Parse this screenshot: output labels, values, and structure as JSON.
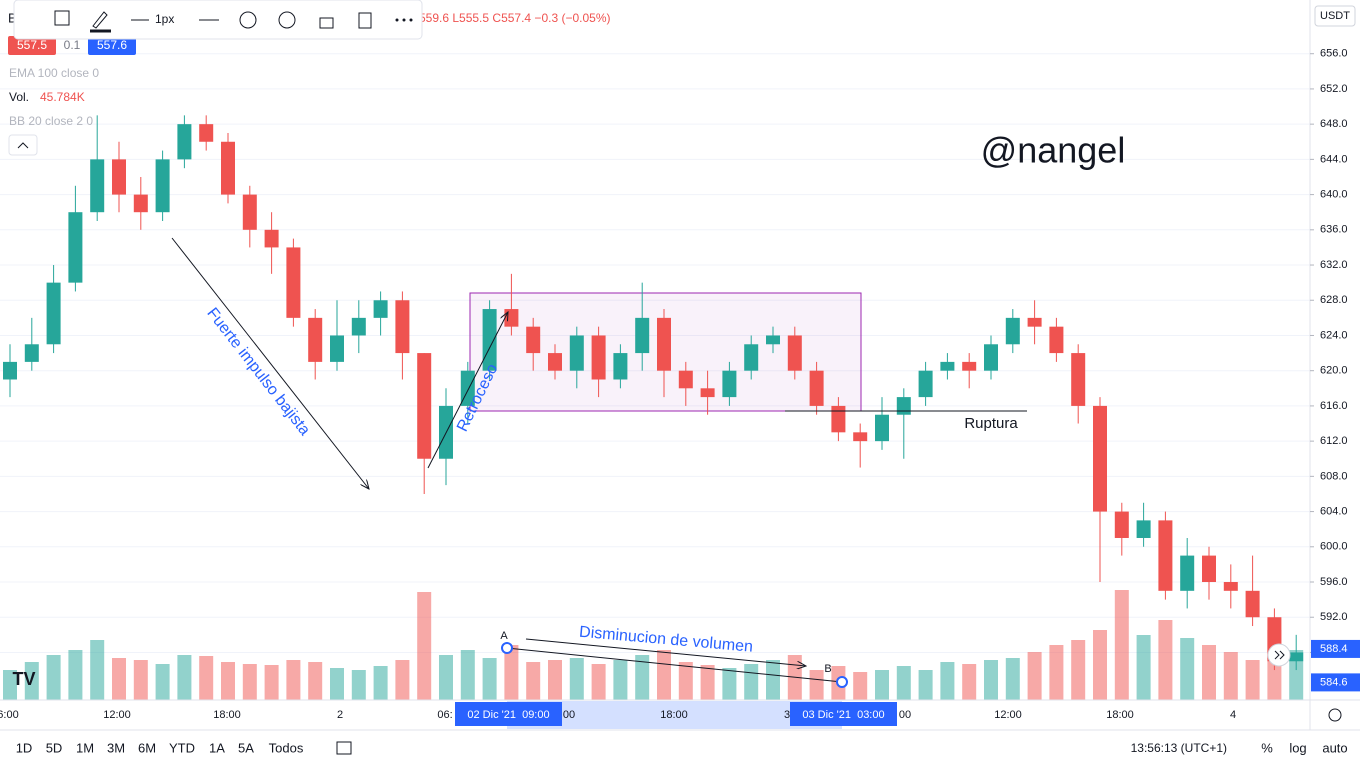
{
  "chart_data": {
    "type": "candlestick",
    "symbol": "B",
    "ohlc_text": "559.6 L555.5 C557.4 −0.3 (−0.05%)",
    "bid": "557.5",
    "spread": "0.1",
    "ask": "557.6",
    "toolbar_width": "1px",
    "indicators": {
      "ema": "EMA 100 close 0",
      "vol": "Vol.",
      "vol_value": "45.784K",
      "bb": "BB 20 close 2 0"
    },
    "currency": "USDT",
    "watermark": "@nangel",
    "annotations": {
      "impulse": "Fuerte impulso bajista",
      "pullback": "Retroceso",
      "breakout": "Ruptura",
      "volume": "Disminucion de volumen",
      "a": "A",
      "b": "B"
    },
    "open": [
      619,
      621,
      623,
      630,
      638,
      644,
      640,
      638,
      644,
      648,
      646,
      640,
      636,
      634,
      626,
      621,
      624,
      626,
      628,
      622,
      610,
      616,
      620,
      627,
      625,
      622,
      620,
      624,
      619,
      622,
      626,
      620,
      618,
      617,
      620,
      623,
      624,
      620,
      616,
      613,
      612,
      615,
      617,
      620,
      621,
      620,
      623,
      626,
      625,
      622,
      616,
      604,
      601,
      603,
      595,
      599,
      596,
      595,
      592,
      587
    ],
    "high": [
      623,
      626,
      632,
      641,
      649,
      646,
      642,
      645,
      649,
      649,
      647,
      641,
      638,
      635,
      627,
      628,
      628,
      629,
      629,
      622,
      618,
      621,
      628,
      631,
      626,
      623,
      625,
      625,
      623,
      630,
      627,
      621,
      620,
      621,
      624,
      625,
      625,
      621,
      617,
      614,
      617,
      618,
      621,
      622,
      622,
      624,
      627,
      628,
      626,
      623,
      617,
      605,
      605,
      604,
      601,
      600,
      598,
      599,
      593,
      590
    ],
    "low": [
      617,
      620,
      622,
      629,
      637,
      638,
      636,
      637,
      643,
      645,
      639,
      634,
      631,
      625,
      619,
      620,
      622,
      624,
      619,
      606,
      607,
      614,
      619,
      624,
      620,
      619,
      618,
      617,
      618,
      620,
      617,
      616,
      615,
      616,
      619,
      622,
      619,
      615,
      612,
      609,
      611,
      610,
      616,
      619,
      618,
      619,
      622,
      623,
      621,
      614,
      596,
      599,
      600,
      594,
      593,
      594,
      593,
      591,
      586,
      586
    ],
    "close": [
      621,
      623,
      630,
      638,
      644,
      640,
      638,
      644,
      648,
      646,
      640,
      636,
      634,
      626,
      621,
      624,
      626,
      628,
      622,
      610,
      616,
      620,
      627,
      625,
      622,
      620,
      624,
      619,
      622,
      626,
      620,
      618,
      617,
      620,
      623,
      624,
      620,
      616,
      613,
      612,
      615,
      617,
      620,
      621,
      620,
      623,
      626,
      625,
      622,
      616,
      604,
      601,
      603,
      595,
      599,
      596,
      595,
      592,
      587,
      588
    ],
    "volume": [
      30,
      38,
      45,
      50,
      60,
      42,
      40,
      36,
      45,
      44,
      38,
      36,
      35,
      40,
      38,
      32,
      30,
      34,
      40,
      108,
      45,
      50,
      42,
      55,
      38,
      40,
      42,
      36,
      40,
      45,
      50,
      38,
      35,
      32,
      36,
      40,
      45,
      30,
      34,
      28,
      30,
      34,
      30,
      38,
      36,
      40,
      42,
      48,
      55,
      60,
      70,
      110,
      65,
      80,
      62,
      55,
      48,
      40,
      70,
      50
    ],
    "volume_lim": [
      0,
      150
    ],
    "ylim": [
      582.6,
      662.1
    ],
    "yticks": [
      {
        "value": 588,
        "label": "588.0"
      },
      {
        "value": 592,
        "label": "592.0"
      },
      {
        "value": 596,
        "label": "596.0"
      },
      {
        "value": 600,
        "label": "600.0"
      },
      {
        "value": 604,
        "label": "604.0"
      },
      {
        "value": 608,
        "label": "608.0"
      },
      {
        "value": 612,
        "label": "612.0"
      },
      {
        "value": 616,
        "label": "616.0"
      },
      {
        "value": 620,
        "label": "620.0"
      },
      {
        "value": 624,
        "label": "624.0"
      },
      {
        "value": 628,
        "label": "628.0"
      },
      {
        "value": 632,
        "label": "632.0"
      },
      {
        "value": 636,
        "label": "636.0"
      },
      {
        "value": 640,
        "label": "640.0"
      },
      {
        "value": 644,
        "label": "644.0"
      },
      {
        "value": 648,
        "label": "648.0"
      },
      {
        "value": 652,
        "label": "652.0"
      },
      {
        "value": 656,
        "label": "656.0"
      }
    ],
    "price_labels": [
      {
        "value": 588.4,
        "label": "588.4",
        "color": "#2962ff"
      },
      {
        "value": 584.6,
        "label": "584.6",
        "color": "#2962ff"
      }
    ],
    "xlabels": [
      "6:00",
      "12:00",
      "18:00",
      "2",
      "06:",
      "00",
      "18:00",
      "3",
      "00",
      "12:00",
      "18:00",
      "4"
    ],
    "xhighlights": [
      "02 Dic '21  09:00",
      "03 Dic '21  03:00"
    ],
    "up_color": "#26a69a",
    "down_color": "#ef5350",
    "grid": true,
    "ranges": [
      "1D",
      "5D",
      "1M",
      "3M",
      "6M",
      "YTD",
      "1A",
      "5A",
      "Todos"
    ],
    "clock": "13:56:13 (UTC+1)",
    "scale_opts": [
      "%",
      "log",
      "auto"
    ]
  }
}
